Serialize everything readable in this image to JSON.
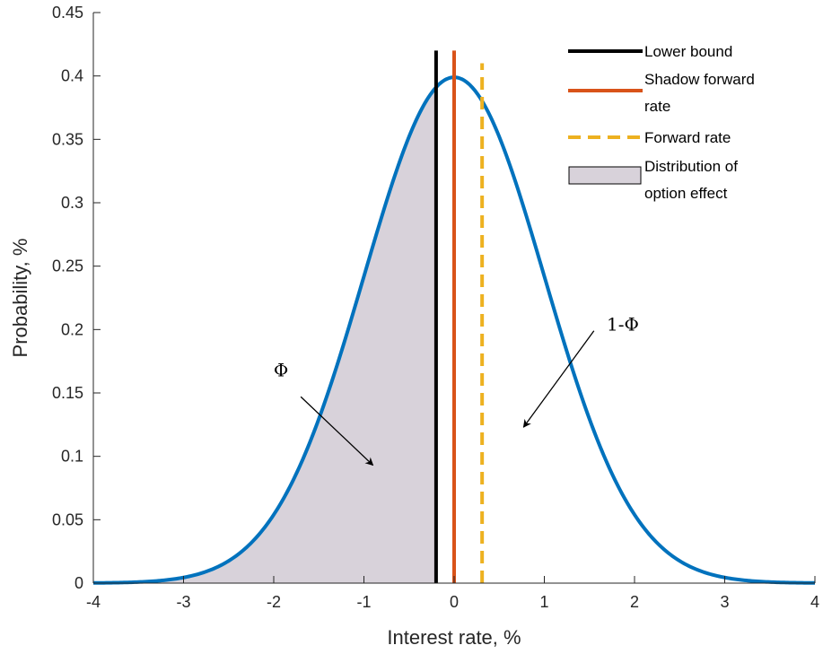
{
  "chart_data": {
    "type": "line",
    "xlabel": "Interest rate, %",
    "ylabel": "Probability, %",
    "xlim": [
      -4,
      4
    ],
    "ylim": [
      0,
      0.45
    ],
    "x_ticks": [
      -4,
      -3,
      -2,
      -1,
      0,
      1,
      2,
      3,
      4
    ],
    "y_ticks": [
      0,
      0.05,
      0.1,
      0.15,
      0.2,
      0.25,
      0.3,
      0.35,
      0.4,
      0.45
    ],
    "grid": false,
    "legend_position": "top-right",
    "series": [
      {
        "name": "Lower bound",
        "kind": "vline",
        "x": -0.2,
        "y_range": [
          0,
          0.42
        ],
        "color": "#000000",
        "style": "solid"
      },
      {
        "name": "Shadow forward rate",
        "kind": "vline",
        "x": 0,
        "y_range": [
          0,
          0.42
        ],
        "color": "#D95319",
        "style": "solid"
      },
      {
        "name": "Forward rate",
        "kind": "vline",
        "x": 0.31,
        "y_range": [
          0,
          0.41
        ],
        "color": "#EDB120",
        "style": "dashed"
      },
      {
        "name": "Distribution of option effect",
        "kind": "area",
        "x_range": [
          -4,
          -0.2
        ],
        "fill": "#D8D2DA",
        "edge": "#000000"
      },
      {
        "kind": "curve",
        "distribution": "standard normal pdf",
        "mean": 0,
        "sd": 1,
        "color": "#0072BD"
      }
    ],
    "annotations": [
      {
        "text": "Φ",
        "label_at": [
          -1.92,
          0.163
        ],
        "arrow_from": [
          -1.7,
          0.147
        ],
        "arrow_to": [
          -0.9,
          0.093
        ]
      },
      {
        "text": "1-Φ",
        "label_at": [
          1.87,
          0.199
        ],
        "arrow_from": [
          1.55,
          0.199
        ],
        "arrow_to": [
          0.77,
          0.123
        ]
      }
    ]
  }
}
